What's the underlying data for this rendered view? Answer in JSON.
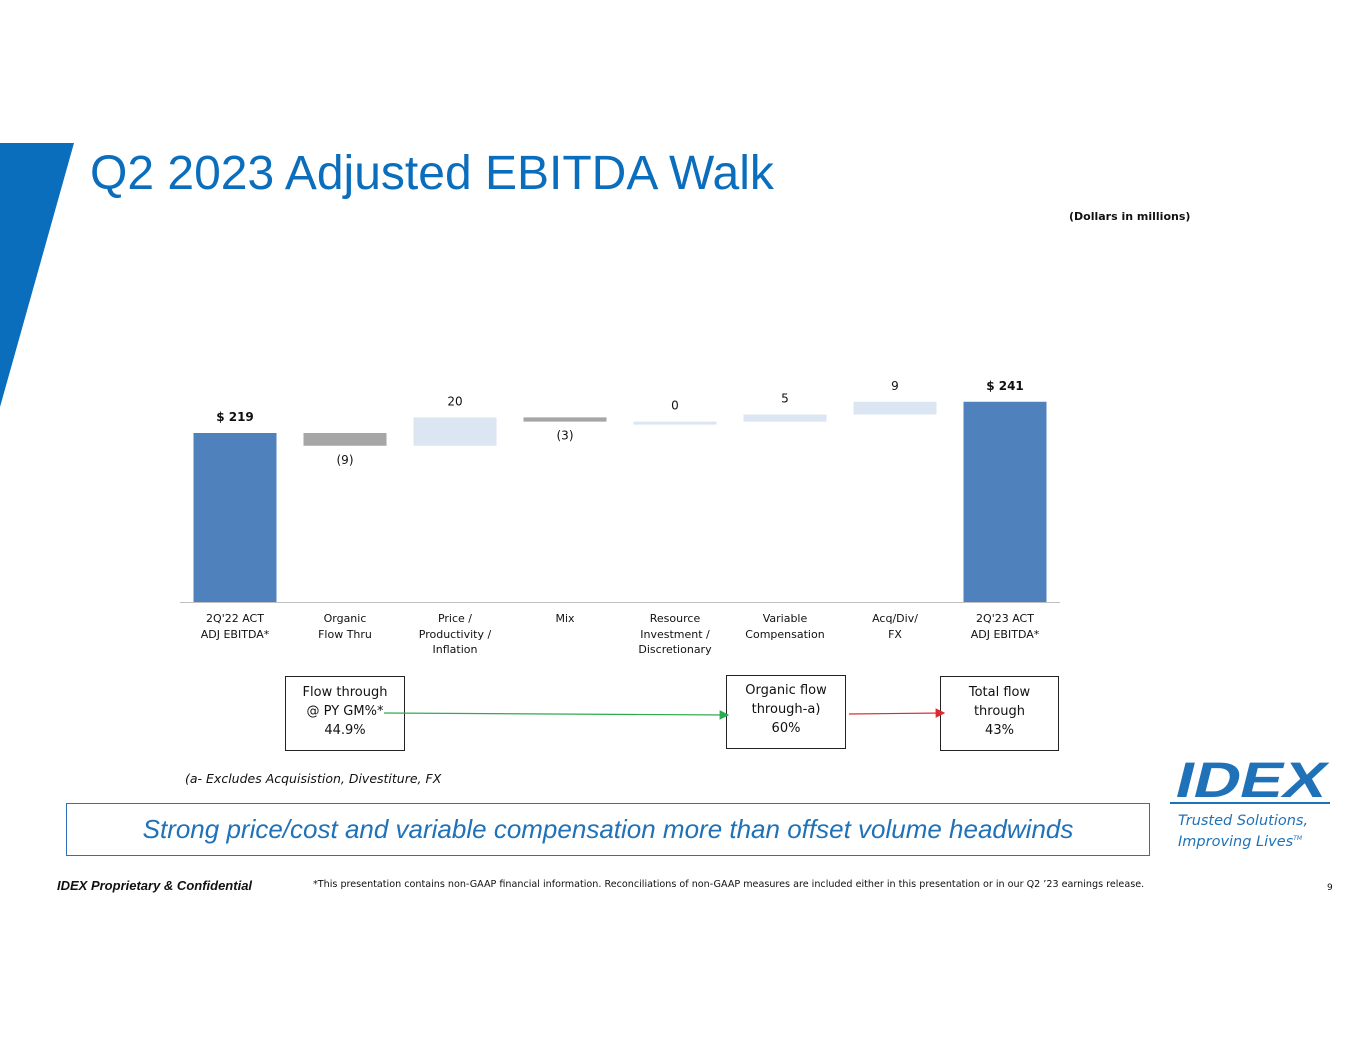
{
  "slide": {
    "title": "Q2 2023 Adjusted EBITDA Walk",
    "units_note": "(Dollars in millions)",
    "accent_color": "#0a6ebd",
    "page_number": "9"
  },
  "chart_data": {
    "type": "waterfall",
    "title": "Q2 2023 Adjusted EBITDA Walk",
    "units": "Dollars in millions",
    "ylim": [
      100,
      250
    ],
    "categories": [
      [
        "2Q'22 ACT",
        "ADJ EBITDA*"
      ],
      [
        "Organic",
        "Flow Thru"
      ],
      [
        "Price /",
        "Productivity /",
        "Inflation"
      ],
      [
        "Mix"
      ],
      [
        "Resource",
        "Investment /",
        "Discretionary"
      ],
      [
        "Variable",
        "Compensation"
      ],
      [
        "Acq/Div/",
        "FX"
      ],
      [
        "2Q'23 ACT",
        "ADJ EBITDA*"
      ]
    ],
    "steps": [
      {
        "kind": "total",
        "value": 219,
        "label": "$ 219"
      },
      {
        "kind": "delta",
        "value": -9,
        "label": "(9)"
      },
      {
        "kind": "delta",
        "value": 20,
        "label": "20"
      },
      {
        "kind": "delta",
        "value": -3,
        "label": "(3)"
      },
      {
        "kind": "delta",
        "value": 0,
        "label": "0"
      },
      {
        "kind": "delta",
        "value": 5,
        "label": "5"
      },
      {
        "kind": "delta",
        "value": 9,
        "label": "9"
      },
      {
        "kind": "total",
        "value": 241,
        "label": "$ 241"
      }
    ],
    "colors": {
      "total": "#4f81bd",
      "increase": "#dce6f2",
      "decrease": "#a6a6a6"
    }
  },
  "flow_through": {
    "py_gm": [
      "Flow through",
      "@ PY GM%*",
      "44.9%"
    ],
    "organic": [
      "Organic flow",
      "through-a)",
      "60%"
    ],
    "total": [
      "Total flow",
      "through",
      "43%"
    ],
    "arrow_colors": {
      "green": "#2eaa4f",
      "red": "#e0282e"
    }
  },
  "footnote_a": "(a- Excludes Acquisistion, Divestiture, FX",
  "banner_text": "Strong price/cost and variable compensation more than offset volume headwinds",
  "logo": {
    "wordmark": "IDEX",
    "tagline_1": "Trusted Solutions,",
    "tagline_2": "Improving Lives",
    "tm": "TM"
  },
  "footer": {
    "confidential": "IDEX Proprietary & Confidential",
    "disclaimer": "*This presentation contains non-GAAP financial information. Reconciliations of non-GAAP measures are included either in this presentation or in our Q2 ’23 earnings release."
  }
}
